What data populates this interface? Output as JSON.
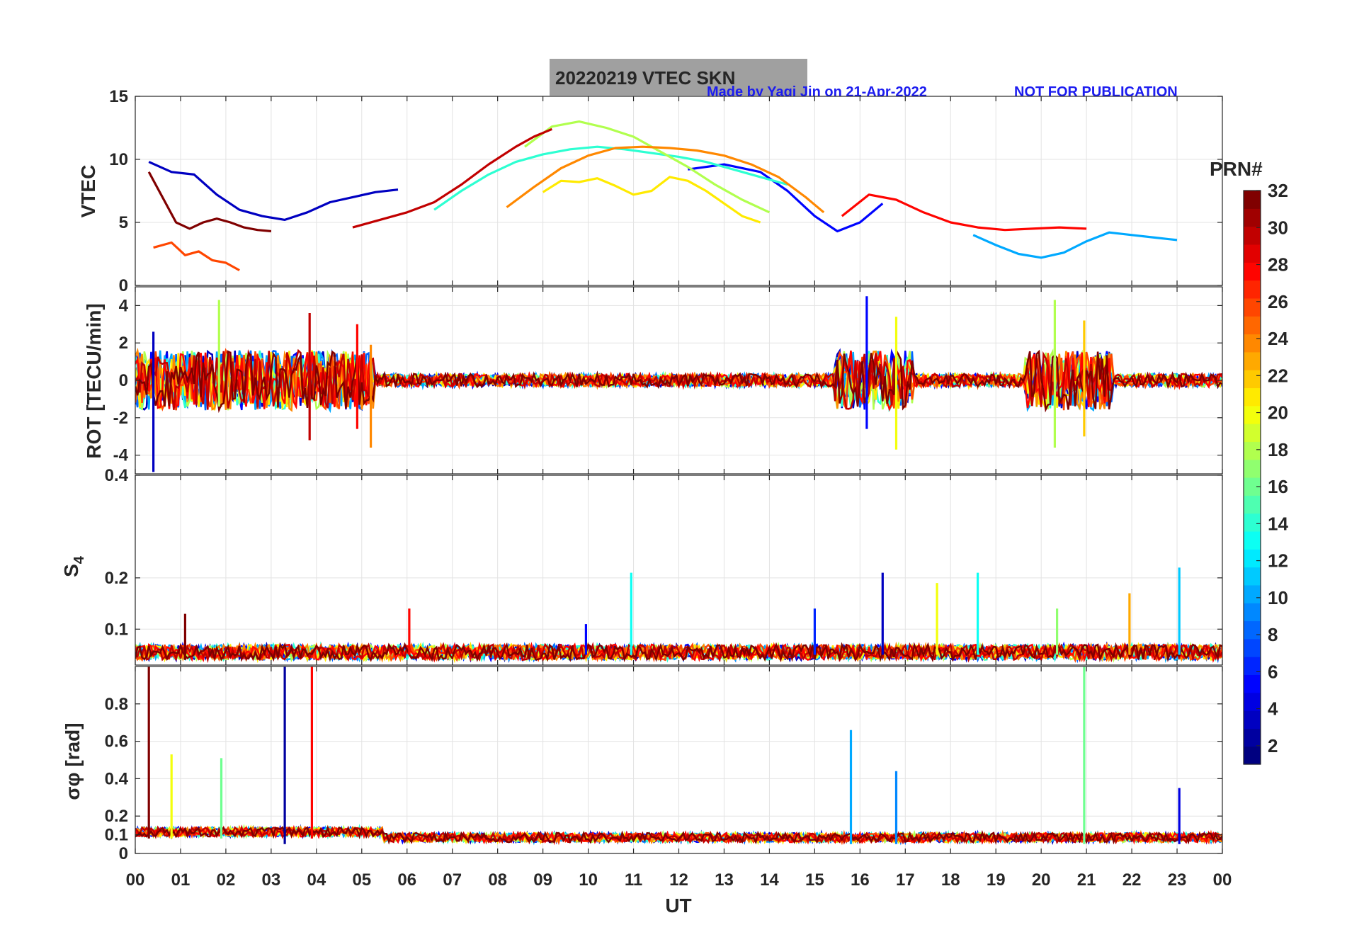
{
  "header": {
    "title": "20220219    VTEC  SKN",
    "credit": "Made by Yaqi Jin on 21-Apr-2022",
    "notice": "NOT FOR PUBLICATION"
  },
  "chart_data": [
    {
      "type": "line",
      "panel": "vtec",
      "ylabel": "VTEC",
      "ylim": [
        0,
        15
      ],
      "yticks": [
        0,
        5,
        10,
        15
      ],
      "xlim": [
        0,
        24
      ],
      "grid": true,
      "series": [
        {
          "name": "PRN 3",
          "prn": 3,
          "x": [
            0.3,
            0.8,
            1.3,
            1.8,
            2.3,
            2.8,
            3.3,
            3.8,
            4.3,
            4.8,
            5.3,
            5.8
          ],
          "y": [
            9.8,
            9.0,
            8.8,
            7.2,
            6.0,
            5.5,
            5.2,
            5.8,
            6.6,
            7.0,
            7.4,
            7.6
          ]
        },
        {
          "name": "PRN 5",
          "prn": 5,
          "x": [
            12.2,
            13.0,
            13.8,
            14.4,
            15.0,
            15.5,
            16.0,
            16.5
          ],
          "y": [
            9.2,
            9.6,
            9.0,
            7.5,
            5.5,
            4.3,
            5.0,
            6.5
          ]
        },
        {
          "name": "PRN 10",
          "prn": 10,
          "x": [
            18.5,
            19.0,
            19.5,
            20.0,
            20.5,
            21.0,
            21.5,
            22.0,
            22.5,
            23.0
          ],
          "y": [
            4.0,
            3.2,
            2.5,
            2.2,
            2.6,
            3.5,
            4.2,
            4.0,
            3.8,
            3.6
          ]
        },
        {
          "name": "PRN 14",
          "prn": 14,
          "x": [
            6.6,
            7.2,
            7.8,
            8.4,
            9.0,
            9.6,
            10.2,
            10.8,
            11.4,
            12.0,
            12.6,
            13.2,
            13.8,
            14.4
          ],
          "y": [
            6.0,
            7.5,
            8.8,
            9.8,
            10.4,
            10.8,
            11.0,
            10.8,
            10.5,
            10.2,
            9.8,
            9.2,
            8.6,
            8.0
          ]
        },
        {
          "name": "PRN 18",
          "prn": 18,
          "x": [
            8.6,
            9.2,
            9.8,
            10.4,
            11.0,
            11.6,
            12.2,
            12.8,
            13.4,
            14.0
          ],
          "y": [
            11.0,
            12.6,
            13.0,
            12.5,
            11.8,
            10.6,
            9.4,
            8.0,
            6.8,
            5.8
          ]
        },
        {
          "name": "PRN 21",
          "prn": 21,
          "x": [
            9.0,
            9.4,
            9.8,
            10.2,
            10.6,
            11.0,
            11.4,
            11.8,
            12.2,
            12.6,
            13.0,
            13.4,
            13.8
          ],
          "y": [
            7.4,
            8.3,
            8.2,
            8.5,
            7.9,
            7.2,
            7.5,
            8.6,
            8.3,
            7.5,
            6.5,
            5.5,
            5.0
          ]
        },
        {
          "name": "PRN 24",
          "prn": 24,
          "x": [
            8.2,
            8.8,
            9.4,
            10.0,
            10.6,
            11.2,
            11.8,
            12.4,
            13.0,
            13.6,
            14.2,
            14.8,
            15.2
          ],
          "y": [
            6.2,
            7.8,
            9.3,
            10.3,
            10.9,
            11.0,
            10.9,
            10.7,
            10.3,
            9.6,
            8.6,
            7.0,
            5.8
          ]
        },
        {
          "name": "PRN 26",
          "prn": 26,
          "x": [
            0.4,
            0.8,
            1.1,
            1.4,
            1.7,
            2.0,
            2.3
          ],
          "y": [
            3.0,
            3.4,
            2.4,
            2.7,
            2.0,
            1.8,
            1.2
          ]
        },
        {
          "name": "PRN 28",
          "prn": 28,
          "x": [
            15.6,
            16.2,
            16.8,
            17.4,
            18.0,
            18.6,
            19.2,
            19.8,
            20.4,
            21.0
          ],
          "y": [
            5.5,
            7.2,
            6.8,
            5.8,
            5.0,
            4.6,
            4.4,
            4.5,
            4.6,
            4.5
          ]
        },
        {
          "name": "PRN 30",
          "prn": 30,
          "x": [
            4.8,
            5.4,
            6.0,
            6.6,
            7.2,
            7.8,
            8.4,
            8.8,
            9.2
          ],
          "y": [
            4.6,
            5.2,
            5.8,
            6.6,
            8.0,
            9.6,
            11.0,
            11.8,
            12.4
          ]
        },
        {
          "name": "PRN 32",
          "prn": 32,
          "x": [
            0.3,
            0.6,
            0.9,
            1.2,
            1.5,
            1.8,
            2.1,
            2.4,
            2.7,
            3.0
          ],
          "y": [
            9.0,
            7.0,
            5.0,
            4.5,
            5.0,
            5.3,
            5.0,
            4.6,
            4.4,
            4.3
          ]
        }
      ]
    },
    {
      "type": "line",
      "panel": "rot",
      "ylabel": "ROT [TECU/min]",
      "ylim": [
        -5,
        5
      ],
      "yticks": [
        -4,
        -2,
        0,
        2,
        4
      ],
      "xlim": [
        0,
        24
      ],
      "grid": true,
      "series": [
        {
          "name": "PRN 3 peak",
          "prn": 3,
          "x": [
            0.4,
            0.4
          ],
          "y": [
            -4.9,
            2.6
          ]
        },
        {
          "name": "PRN 5 peak",
          "prn": 5,
          "x": [
            16.15,
            16.15
          ],
          "y": [
            -2.6,
            4.5
          ]
        },
        {
          "name": "PRN 18 peak",
          "prn": 18,
          "x": [
            1.85,
            1.85
          ],
          "y": [
            -1.4,
            4.3
          ]
        },
        {
          "name": "PRN 18 peak",
          "prn": 18,
          "x": [
            20.3,
            20.3
          ],
          "y": [
            -3.6,
            4.3
          ]
        },
        {
          "name": "PRN 20 peak",
          "prn": 20,
          "x": [
            16.8,
            16.8
          ],
          "y": [
            -3.7,
            3.4
          ]
        },
        {
          "name": "PRN 22 peak",
          "prn": 22,
          "x": [
            20.95,
            20.95
          ],
          "y": [
            -3.0,
            3.2
          ]
        },
        {
          "name": "PRN 24 peak",
          "prn": 24,
          "x": [
            5.2,
            5.2
          ],
          "y": [
            -3.6,
            1.9
          ]
        },
        {
          "name": "PRN 30 peak",
          "prn": 30,
          "x": [
            3.85,
            3.85
          ],
          "y": [
            -3.2,
            3.6
          ]
        },
        {
          "name": "PRN 28 peak",
          "prn": 28,
          "x": [
            4.9,
            4.9
          ],
          "y": [
            -2.6,
            3.0
          ]
        }
      ]
    },
    {
      "type": "line",
      "panel": "s4",
      "ylabel": "S4",
      "ylim": [
        0.03,
        0.4
      ],
      "yticks": [
        0.1,
        0.2,
        0.4
      ],
      "xlim": [
        0,
        24
      ],
      "grid": true,
      "series": [
        {
          "name": "PRN 32 spike",
          "prn": 32,
          "x": [
            1.1,
            1.1
          ],
          "y": [
            0.04,
            0.13
          ]
        },
        {
          "name": "PRN 28 spike",
          "prn": 28,
          "x": [
            6.05,
            6.05
          ],
          "y": [
            0.05,
            0.14
          ]
        },
        {
          "name": "PRN 5 spike",
          "prn": 5,
          "x": [
            9.95,
            9.95
          ],
          "y": [
            0.05,
            0.11
          ]
        },
        {
          "name": "PRN 13 spike",
          "prn": 13,
          "x": [
            10.95,
            10.95
          ],
          "y": [
            0.05,
            0.21
          ]
        },
        {
          "name": "PRN 6 spike",
          "prn": 6,
          "x": [
            15.0,
            15.0
          ],
          "y": [
            0.05,
            0.14
          ]
        },
        {
          "name": "PRN 3 spike",
          "prn": 3,
          "x": [
            16.5,
            16.5
          ],
          "y": [
            0.05,
            0.21
          ]
        },
        {
          "name": "PRN 20 spike",
          "prn": 20,
          "x": [
            17.7,
            17.7
          ],
          "y": [
            0.05,
            0.19
          ]
        },
        {
          "name": "PRN 13 spike",
          "prn": 13,
          "x": [
            18.6,
            18.6
          ],
          "y": [
            0.05,
            0.21
          ]
        },
        {
          "name": "PRN 17 spike",
          "prn": 17,
          "x": [
            20.35,
            20.35
          ],
          "y": [
            0.05,
            0.14
          ]
        },
        {
          "name": "PRN 23 spike",
          "prn": 23,
          "x": [
            21.95,
            21.95
          ],
          "y": [
            0.05,
            0.17
          ]
        },
        {
          "name": "PRN 11 spike",
          "prn": 11,
          "x": [
            23.05,
            23.05
          ],
          "y": [
            0.05,
            0.22
          ]
        }
      ]
    },
    {
      "type": "line",
      "panel": "sigma_phi",
      "ylabel": "σφ [rad]",
      "ylim": [
        0,
        1
      ],
      "yticks": [
        0,
        0.1,
        0.2,
        0.4,
        0.6,
        0.8
      ],
      "xlim": [
        0,
        24
      ],
      "xticks": [
        "00",
        "01",
        "02",
        "03",
        "04",
        "05",
        "06",
        "07",
        "08",
        "09",
        "10",
        "11",
        "12",
        "13",
        "14",
        "15",
        "16",
        "17",
        "18",
        "19",
        "20",
        "21",
        "22",
        "23",
        "00"
      ],
      "xlabel": "UT",
      "grid": true,
      "series": [
        {
          "name": "PRN 32 spike",
          "prn": 32,
          "x": [
            0.3,
            0.3
          ],
          "y": [
            0.08,
            1.0
          ]
        },
        {
          "name": "PRN 20 spike",
          "prn": 20,
          "x": [
            0.8,
            0.8
          ],
          "y": [
            0.08,
            0.53
          ]
        },
        {
          "name": "PRN 16 spike",
          "prn": 16,
          "x": [
            1.9,
            1.9
          ],
          "y": [
            0.08,
            0.51
          ]
        },
        {
          "name": "PRN 2 spike",
          "prn": 2,
          "x": [
            3.3,
            3.3
          ],
          "y": [
            0.05,
            1.0
          ]
        },
        {
          "name": "PRN 28 spike",
          "prn": 28,
          "x": [
            3.9,
            3.9
          ],
          "y": [
            0.08,
            1.0
          ]
        },
        {
          "name": "PRN 10 spike",
          "prn": 10,
          "x": [
            15.8,
            15.8
          ],
          "y": [
            0.05,
            0.66
          ]
        },
        {
          "name": "PRN 9 spike",
          "prn": 9,
          "x": [
            16.8,
            16.8
          ],
          "y": [
            0.05,
            0.44
          ]
        },
        {
          "name": "PRN 16 spike",
          "prn": 16,
          "x": [
            20.95,
            20.95
          ],
          "y": [
            0.05,
            1.0
          ]
        },
        {
          "name": "PRN 4 spike",
          "prn": 4,
          "x": [
            23.05,
            23.05
          ],
          "y": [
            0.05,
            0.35
          ]
        }
      ]
    }
  ],
  "colorbar": {
    "label": "PRN#",
    "range": [
      1,
      32
    ],
    "ticks": [
      2,
      4,
      6,
      8,
      10,
      12,
      14,
      16,
      18,
      20,
      22,
      24,
      26,
      28,
      30,
      32
    ]
  }
}
